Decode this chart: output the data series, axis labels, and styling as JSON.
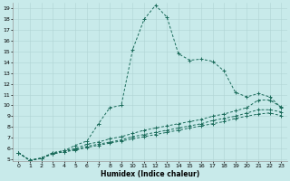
{
  "xlabel": "Humidex (Indice chaleur)",
  "background_color": "#c8eaea",
  "grid_color": "#b0d4d4",
  "line_color": "#1a6b5a",
  "xlim": [
    -0.5,
    23.5
  ],
  "ylim": [
    4.8,
    19.5
  ],
  "xticks": [
    0,
    1,
    2,
    3,
    4,
    5,
    6,
    7,
    8,
    9,
    10,
    11,
    12,
    13,
    14,
    15,
    16,
    17,
    18,
    19,
    20,
    21,
    22,
    23
  ],
  "yticks": [
    5,
    6,
    7,
    8,
    9,
    10,
    11,
    12,
    13,
    14,
    15,
    16,
    17,
    18,
    19
  ],
  "line1_x": [
    0,
    1,
    2,
    3,
    4,
    5,
    6,
    7,
    8,
    9,
    10,
    11,
    12,
    13,
    14,
    15,
    16,
    17,
    18,
    19,
    20,
    21,
    22,
    23
  ],
  "line1_y": [
    5.6,
    4.9,
    5.1,
    5.6,
    5.8,
    6.3,
    6.7,
    8.3,
    9.8,
    10.0,
    15.2,
    18.0,
    19.3,
    18.2,
    14.8,
    14.2,
    14.3,
    14.1,
    13.2,
    11.2,
    10.8,
    11.1,
    10.8,
    9.8
  ],
  "line2_x": [
    0,
    1,
    2,
    3,
    4,
    5,
    6,
    7,
    8,
    9,
    10,
    11,
    12,
    13,
    14,
    15,
    16,
    17,
    18,
    19,
    20,
    21,
    22,
    23
  ],
  "line2_y": [
    5.6,
    4.9,
    5.1,
    5.6,
    5.8,
    6.0,
    6.4,
    6.6,
    6.9,
    7.1,
    7.4,
    7.7,
    7.9,
    8.1,
    8.3,
    8.5,
    8.7,
    9.0,
    9.2,
    9.5,
    9.8,
    10.5,
    10.5,
    9.85
  ],
  "line3_x": [
    0,
    1,
    2,
    3,
    4,
    5,
    6,
    7,
    8,
    9,
    10,
    11,
    12,
    13,
    14,
    15,
    16,
    17,
    18,
    19,
    20,
    21,
    22,
    23
  ],
  "line3_y": [
    5.6,
    4.9,
    5.1,
    5.5,
    5.7,
    5.9,
    6.2,
    6.4,
    6.6,
    6.8,
    7.1,
    7.3,
    7.5,
    7.7,
    7.9,
    8.1,
    8.3,
    8.6,
    8.8,
    9.0,
    9.3,
    9.6,
    9.6,
    9.4
  ],
  "line4_x": [
    0,
    1,
    2,
    3,
    4,
    5,
    6,
    7,
    8,
    9,
    10,
    11,
    12,
    13,
    14,
    15,
    16,
    17,
    18,
    19,
    20,
    21,
    22,
    23
  ],
  "line4_y": [
    5.6,
    4.9,
    5.1,
    5.5,
    5.7,
    5.85,
    6.1,
    6.3,
    6.5,
    6.7,
    6.9,
    7.1,
    7.3,
    7.5,
    7.7,
    7.9,
    8.1,
    8.3,
    8.5,
    8.8,
    9.0,
    9.2,
    9.3,
    9.05
  ]
}
